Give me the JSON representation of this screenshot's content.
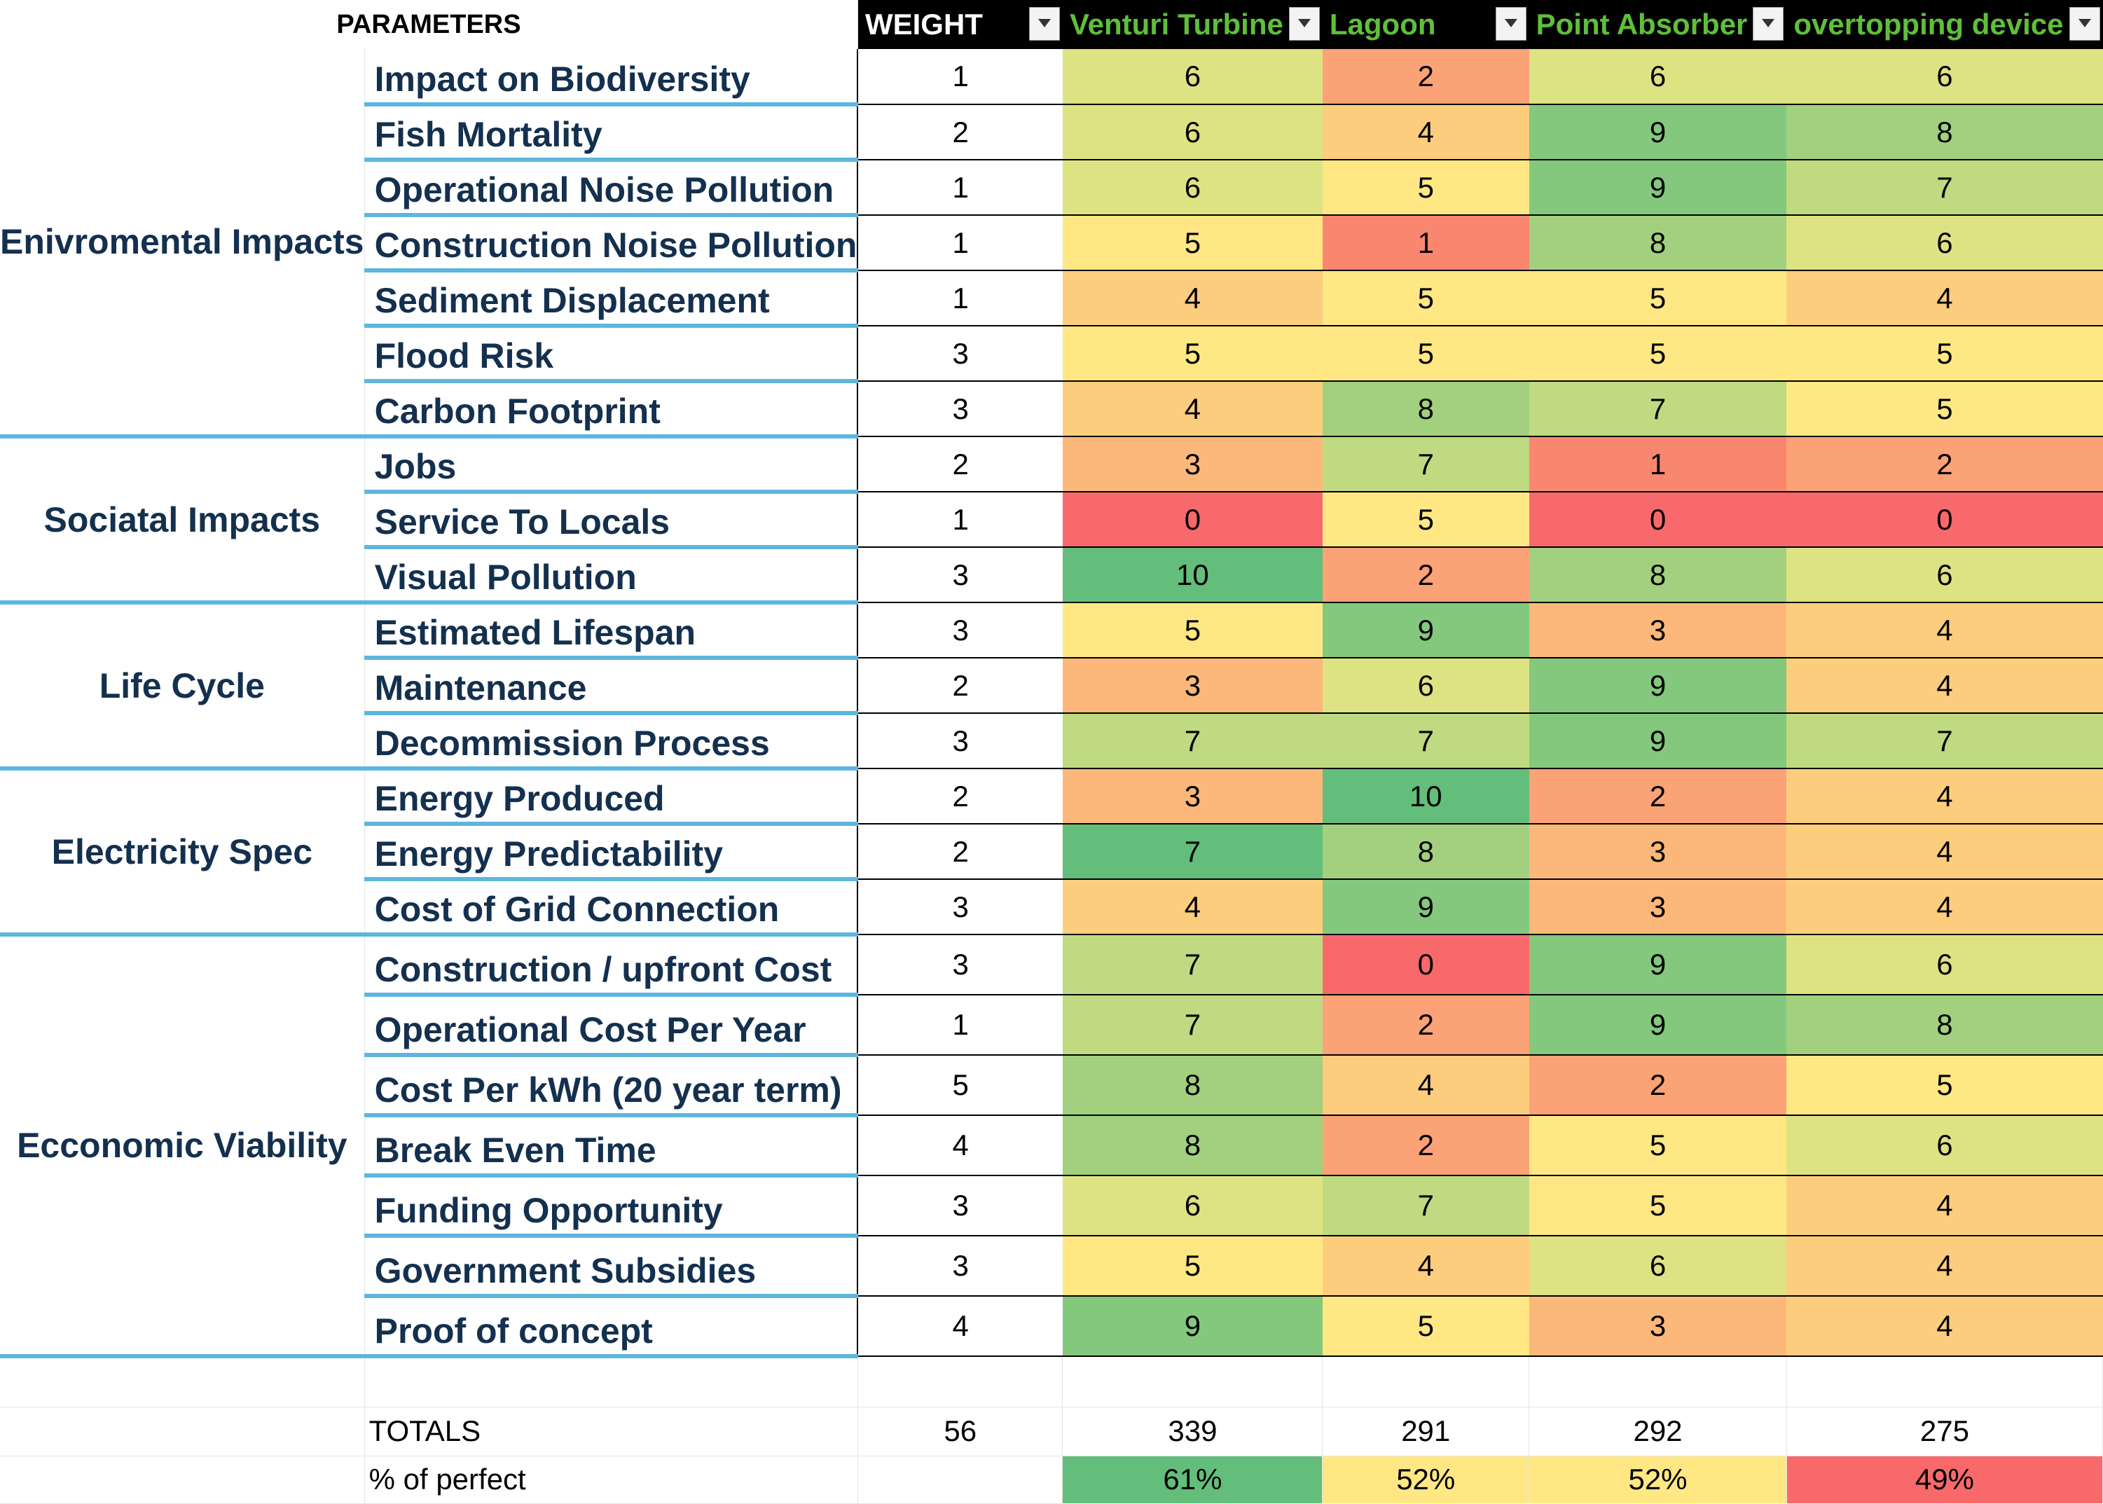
{
  "header": {
    "parameters": "PARAMETERS",
    "weight": "WEIGHT",
    "options": [
      "Venturi Turbine",
      "Lagoon",
      "Point Absorber",
      "overtopping device"
    ]
  },
  "categories": [
    {
      "label": "Enivromental Impacts",
      "rows": [
        {
          "param": "Impact on Biodiversity",
          "weight": "1",
          "scores": [
            "6",
            "2",
            "6",
            "6"
          ],
          "colors": [
            "#dde383",
            "#fba276",
            "#dde383",
            "#dde383"
          ]
        },
        {
          "param": "Fish Mortality",
          "weight": "2",
          "scores": [
            "6",
            "4",
            "9",
            "8"
          ],
          "colors": [
            "#dde383",
            "#fdcd7e",
            "#84c87d",
            "#a2d07f"
          ]
        },
        {
          "param": "Operational Noise Pollution",
          "weight": "1",
          "scores": [
            "6",
            "5",
            "9",
            "7"
          ],
          "colors": [
            "#dde383",
            "#ffe884",
            "#84c87d",
            "#bfda81"
          ]
        },
        {
          "param": "Construction Noise Pollution",
          "weight": "1",
          "scores": [
            "5",
            "1",
            "8",
            "6"
          ],
          "colors": [
            "#ffe884",
            "#f98770",
            "#a2d07f",
            "#dde383"
          ]
        },
        {
          "param": "Sediment Displacement",
          "weight": "1",
          "scores": [
            "4",
            "5",
            "5",
            "4"
          ],
          "colors": [
            "#fdcd7e",
            "#ffe884",
            "#ffe884",
            "#fdcd7e"
          ]
        },
        {
          "param": "Flood Risk",
          "weight": "3",
          "scores": [
            "5",
            "5",
            "5",
            "5"
          ],
          "colors": [
            "#ffe884",
            "#ffe884",
            "#ffe884",
            "#ffe884"
          ]
        },
        {
          "param": "Carbon Footprint",
          "weight": "3",
          "scores": [
            "4",
            "8",
            "7",
            "5"
          ],
          "colors": [
            "#fdcd7e",
            "#a2d07f",
            "#bfda81",
            "#ffe884"
          ]
        }
      ]
    },
    {
      "label": "Sociatal Impacts",
      "rows": [
        {
          "param": "Jobs",
          "weight": "2",
          "scores": [
            "3",
            "7",
            "1",
            "2"
          ],
          "colors": [
            "#fcb87a",
            "#bfda81",
            "#f98770",
            "#fba276"
          ]
        },
        {
          "param": "Service To Locals",
          "weight": "1",
          "scores": [
            "0",
            "5",
            "0",
            "0"
          ],
          "colors": [
            "#f8696b",
            "#ffe884",
            "#f8696b",
            "#f8696b"
          ]
        },
        {
          "param": "Visual Pollution",
          "weight": "3",
          "scores": [
            "10",
            "2",
            "8",
            "6"
          ],
          "colors": [
            "#63be7b",
            "#fba276",
            "#a2d07f",
            "#dde383"
          ]
        }
      ]
    },
    {
      "label": "Life Cycle",
      "rows": [
        {
          "param": "Estimated Lifespan",
          "weight": "3",
          "scores": [
            "5",
            "9",
            "3",
            "4"
          ],
          "colors": [
            "#ffe884",
            "#84c87d",
            "#fcb87a",
            "#fdcd7e"
          ]
        },
        {
          "param": "Maintenance",
          "weight": "2",
          "scores": [
            "3",
            "6",
            "9",
            "4"
          ],
          "colors": [
            "#fcb87a",
            "#dde383",
            "#84c87d",
            "#fdcd7e"
          ]
        },
        {
          "param": "Decommission Process",
          "weight": "3",
          "scores": [
            "7",
            "7",
            "9",
            "7"
          ],
          "colors": [
            "#bfda81",
            "#bfda81",
            "#84c87d",
            "#bfda81"
          ]
        }
      ]
    },
    {
      "label": "Electricity Spec",
      "rows": [
        {
          "param": "Energy Produced",
          "weight": "2",
          "scores": [
            "3",
            "10",
            "2",
            "4"
          ],
          "colors": [
            "#fcb87a",
            "#63be7b",
            "#fba276",
            "#fdcd7e"
          ]
        },
        {
          "param": "Energy Predictability",
          "weight": "2",
          "scores": [
            "7",
            "8",
            "3",
            "4"
          ],
          "colors": [
            "#63be7b",
            "#a2d07f",
            "#fcb87a",
            "#fdcd7e"
          ]
        },
        {
          "param": "Cost of Grid Connection",
          "weight": "3",
          "scores": [
            "4",
            "9",
            "3",
            "4"
          ],
          "colors": [
            "#fdcd7e",
            "#84c87d",
            "#fcb87a",
            "#fdcd7e"
          ]
        }
      ]
    },
    {
      "label": "Ecconomic Viability",
      "rows": [
        {
          "param": "Construction / upfront Cost",
          "weight": "3",
          "scores": [
            "7",
            "0",
            "9",
            "6"
          ],
          "colors": [
            "#bfda81",
            "#f8696b",
            "#84c87d",
            "#dde383"
          ]
        },
        {
          "param": "Operational Cost Per Year",
          "weight": "1",
          "scores": [
            "7",
            "2",
            "9",
            "8"
          ],
          "colors": [
            "#bfda81",
            "#fba276",
            "#84c87d",
            "#a2d07f"
          ]
        },
        {
          "param": "Cost Per kWh (20 year term)",
          "weight": "5",
          "scores": [
            "8",
            "4",
            "2",
            "5"
          ],
          "colors": [
            "#a2d07f",
            "#fdcd7e",
            "#fba276",
            "#ffe884"
          ]
        },
        {
          "param": "Break Even Time",
          "weight": "4",
          "scores": [
            "8",
            "2",
            "5",
            "6"
          ],
          "colors": [
            "#a2d07f",
            "#fba276",
            "#ffe884",
            "#dde383"
          ]
        },
        {
          "param": "Funding Opportunity",
          "weight": "3",
          "scores": [
            "6",
            "7",
            "5",
            "4"
          ],
          "colors": [
            "#dde383",
            "#bfda81",
            "#ffe884",
            "#fdcd7e"
          ]
        },
        {
          "param": "Government Subsidies",
          "weight": "3",
          "scores": [
            "5",
            "4",
            "6",
            "4"
          ],
          "colors": [
            "#ffe884",
            "#fdcd7e",
            "#dde383",
            "#fdcd7e"
          ]
        },
        {
          "param": "Proof of concept",
          "weight": "4",
          "scores": [
            "9",
            "5",
            "3",
            "4"
          ],
          "colors": [
            "#84c87d",
            "#ffe884",
            "#fcb87a",
            "#fdcd7e"
          ]
        }
      ]
    }
  ],
  "totals": {
    "label": "TOTALS",
    "weight": "56",
    "values": [
      "339",
      "291",
      "292",
      "275"
    ]
  },
  "percent": {
    "label": "% of perfect",
    "values": [
      "61%",
      "52%",
      "52%",
      "49%"
    ],
    "colors": [
      "#63be7b",
      "#ffe884",
      "#ffe884",
      "#f8696b"
    ]
  }
}
